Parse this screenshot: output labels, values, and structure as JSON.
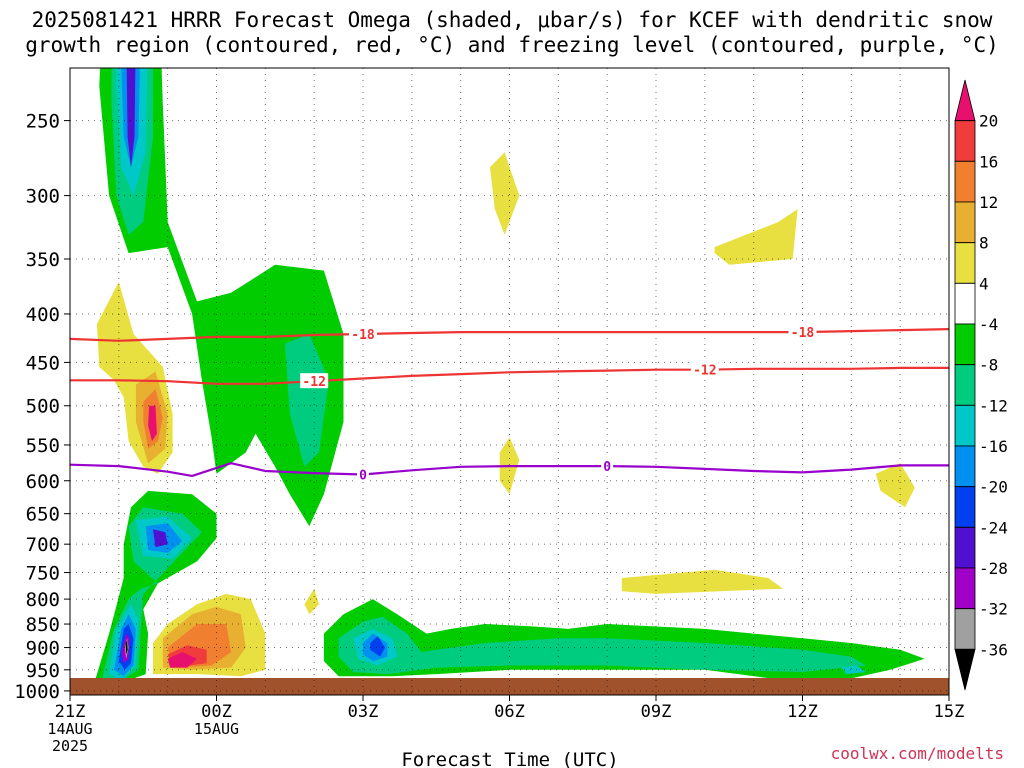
{
  "title_line1": "2025081421 HRRR Forecast Omega (shaded, μbar/s) for KCEF with dendritic snow",
  "title_line2": "growth region (contoured, red, °C) and freezing level (contoured, purple, °C)",
  "credit": "coolwx.com/modelts",
  "chart_data": {
    "type": "heatmap",
    "xlabel": "Forecast Time (UTC)",
    "ylabel": "",
    "x_range_hours": [
      0,
      18
    ],
    "x_ticks": [
      {
        "hour": 0,
        "lines": [
          "21Z",
          "14AUG",
          "2025"
        ]
      },
      {
        "hour": 3,
        "lines": [
          "00Z",
          "15AUG"
        ]
      },
      {
        "hour": 6,
        "lines": [
          "03Z"
        ]
      },
      {
        "hour": 9,
        "lines": [
          "06Z"
        ]
      },
      {
        "hour": 12,
        "lines": [
          "09Z"
        ]
      },
      {
        "hour": 15,
        "lines": [
          "12Z"
        ]
      },
      {
        "hour": 18,
        "lines": [
          "15Z"
        ]
      }
    ],
    "y_axis": "pressure (hPa), log scale, inverted",
    "y_ticks": [
      250,
      300,
      350,
      400,
      450,
      500,
      550,
      600,
      650,
      700,
      750,
      800,
      850,
      900,
      950,
      1000
    ],
    "colorbar": {
      "labels": [
        "20",
        "16",
        "12",
        "8",
        "4",
        "-4",
        "-8",
        "-12",
        "-16",
        "-20",
        "-24",
        "-28",
        "-32",
        "-36"
      ],
      "colors": [
        "#e8106e",
        "#f03c3c",
        "#f08030",
        "#e8b030",
        "#e8e040",
        "#ffffff",
        "#00cc00",
        "#00cc80",
        "#00c8c8",
        "#0090f0",
        "#0040f0",
        "#5010d0",
        "#a000c8",
        "#a0a0a0",
        "#000000"
      ]
    },
    "contours": [
      {
        "name": "-18",
        "color": "#ee3333",
        "label_positions_hours": [
          6,
          15
        ],
        "points": [
          [
            0,
            425
          ],
          [
            1,
            427
          ],
          [
            2,
            425
          ],
          [
            3,
            423
          ],
          [
            4,
            423
          ],
          [
            5,
            421
          ],
          [
            6,
            420
          ],
          [
            7,
            419
          ],
          [
            8,
            418
          ],
          [
            9,
            418
          ],
          [
            10,
            418
          ],
          [
            11,
            418
          ],
          [
            12,
            418
          ],
          [
            13,
            418
          ],
          [
            14,
            418
          ],
          [
            15,
            418
          ],
          [
            16,
            417
          ],
          [
            17,
            416
          ],
          [
            18,
            415
          ]
        ]
      },
      {
        "name": "-12",
        "color": "#ee3333",
        "label_positions_hours": [
          5,
          13
        ],
        "points": [
          [
            0,
            470
          ],
          [
            1,
            470
          ],
          [
            2,
            471
          ],
          [
            3,
            474
          ],
          [
            4,
            474
          ],
          [
            5,
            471
          ],
          [
            6,
            468
          ],
          [
            7,
            465
          ],
          [
            8,
            463
          ],
          [
            9,
            461
          ],
          [
            10,
            460
          ],
          [
            11,
            459
          ],
          [
            12,
            458
          ],
          [
            13,
            458
          ],
          [
            14,
            457
          ],
          [
            15,
            457
          ],
          [
            16,
            457
          ],
          [
            17,
            456
          ],
          [
            18,
            456
          ]
        ]
      },
      {
        "name": "0",
        "color": "#9900cc",
        "label_positions_hours": [
          6,
          11
        ],
        "points": [
          [
            0,
            577
          ],
          [
            1,
            579
          ],
          [
            2,
            587
          ],
          [
            2.5,
            593
          ],
          [
            3.3,
            575
          ],
          [
            4,
            586
          ],
          [
            5,
            589
          ],
          [
            6,
            591
          ],
          [
            7,
            585
          ],
          [
            8,
            580
          ],
          [
            9,
            579
          ],
          [
            10,
            579
          ],
          [
            11,
            579
          ],
          [
            12,
            580
          ],
          [
            13,
            583
          ],
          [
            14,
            586
          ],
          [
            15,
            588
          ],
          [
            16,
            584
          ],
          [
            17,
            578
          ],
          [
            18,
            578
          ]
        ]
      }
    ]
  }
}
